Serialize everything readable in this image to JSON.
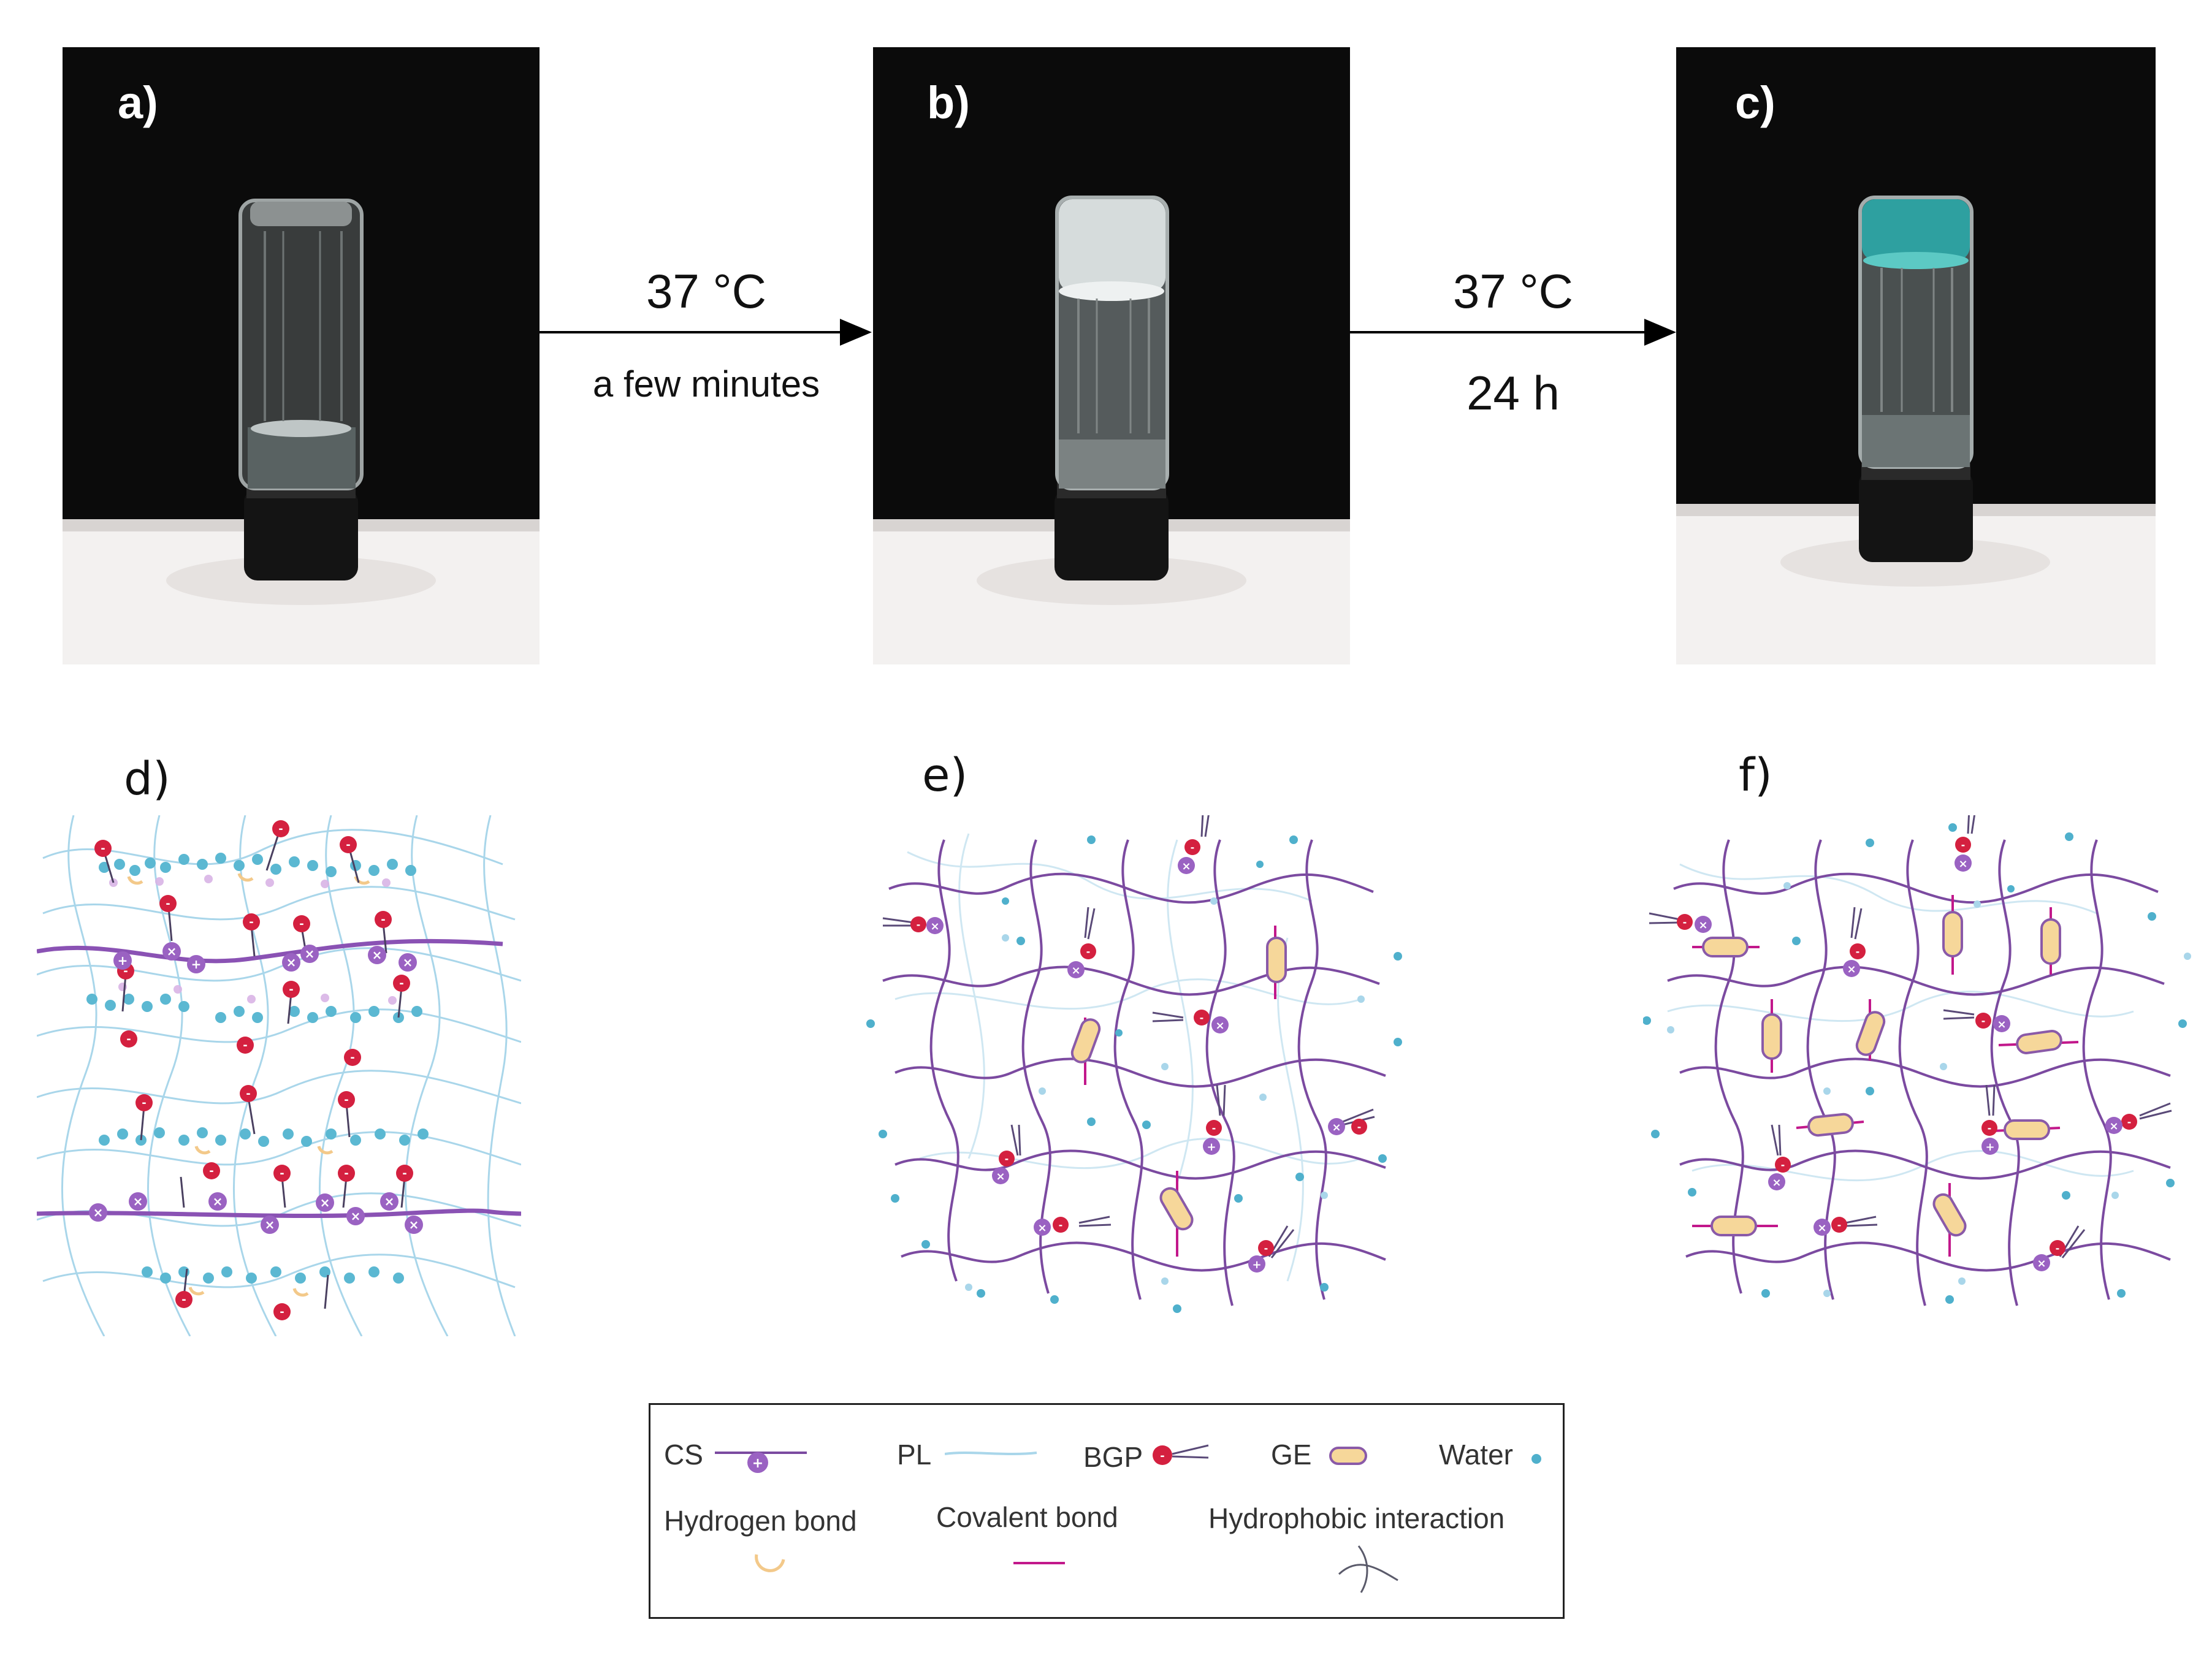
{
  "colors": {
    "cs_chain": "#7b4aa0",
    "pl_chain": "#a9d6ea",
    "bgp_head": "#d4203f",
    "ge_body": "#f6d79a",
    "ge_border": "#8a5aa8",
    "water": "#4fb0cc",
    "hbond": "#f3c98a",
    "covalent": "#c2188b",
    "background_photo": "#0c0c0c",
    "surface": "#f4f2f1",
    "blue_gel": "#2ea0a0"
  },
  "photos": [
    {
      "letter": "a)",
      "state": "clear solution"
    },
    {
      "letter": "b)",
      "state": "opaque gel"
    },
    {
      "letter": "c)",
      "state": "blue-stained gel"
    }
  ],
  "steps": [
    {
      "top_label": "37 °C",
      "bottom_label": "a few minutes"
    },
    {
      "top_label": "37 °C",
      "bottom_label": "24 h"
    }
  ],
  "schemes": [
    {
      "letter": "d)"
    },
    {
      "letter": "e)"
    },
    {
      "letter": "f)"
    }
  ],
  "legend": {
    "cs": "CS",
    "pl": "PL",
    "bgp": "BGP",
    "ge": "GE",
    "water": "Water",
    "hydrogen_bond": "Hydrogen bond",
    "covalent_bond": "Covalent bond",
    "hydrophobic": "Hydrophobic interaction"
  }
}
